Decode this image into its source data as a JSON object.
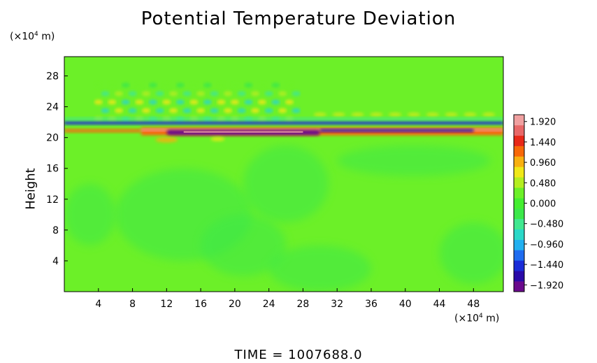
{
  "chart_data": {
    "type": "heatmap",
    "title": "Potential Temperature Deviation",
    "ylabel": "Height",
    "y_unit": "(×10",
    "x_unit": "(×10",
    "unit_exp": "4",
    "unit_tail": " m)",
    "footer": "TIME = 1007688.0",
    "xlim": [
      0,
      51.5
    ],
    "ylim": [
      0,
      30.5
    ],
    "x_ticks": [
      4,
      8,
      12,
      16,
      20,
      24,
      28,
      32,
      36,
      40,
      44,
      48
    ],
    "y_ticks": [
      4,
      8,
      12,
      16,
      20,
      24,
      28
    ],
    "grid": false,
    "colorbar": {
      "min": -2.08,
      "max": 2.08,
      "ticks": [
        "1.920",
        "1.440",
        "0.960",
        "0.480",
        "0.000",
        "−0.480",
        "−0.960",
        "−1.440",
        "−1.920"
      ],
      "tick_values": [
        1.92,
        1.44,
        0.96,
        0.48,
        0.0,
        -0.48,
        -0.96,
        -1.44,
        -1.92
      ],
      "colors": [
        "#6a0a8c",
        "#2a0aa8",
        "#1a2cd8",
        "#1f6cf0",
        "#22b0f0",
        "#2ad8c8",
        "#40e890",
        "#3ce84a",
        "#44ee30",
        "#6cf028",
        "#b4ee20",
        "#f0e818",
        "#f8b010",
        "#f86808",
        "#e82818",
        "#e86868",
        "#f0a0a0"
      ]
    },
    "features": [
      {
        "name": "warm band",
        "x": [
          9,
          51.5
        ],
        "y": [
          20.3,
          21.3
        ],
        "value": 1.92
      },
      {
        "name": "cold core",
        "x": [
          12,
          30
        ],
        "y": [
          20.3,
          21.0
        ],
        "value": -1.92
      },
      {
        "name": "cold band",
        "x": [
          0,
          51.5
        ],
        "y": [
          21.7,
          22.1
        ],
        "value": -1.44
      },
      {
        "name": "wave packet",
        "x": [
          4,
          28
        ],
        "y": [
          22,
          27
        ],
        "value": 0.96
      }
    ]
  }
}
